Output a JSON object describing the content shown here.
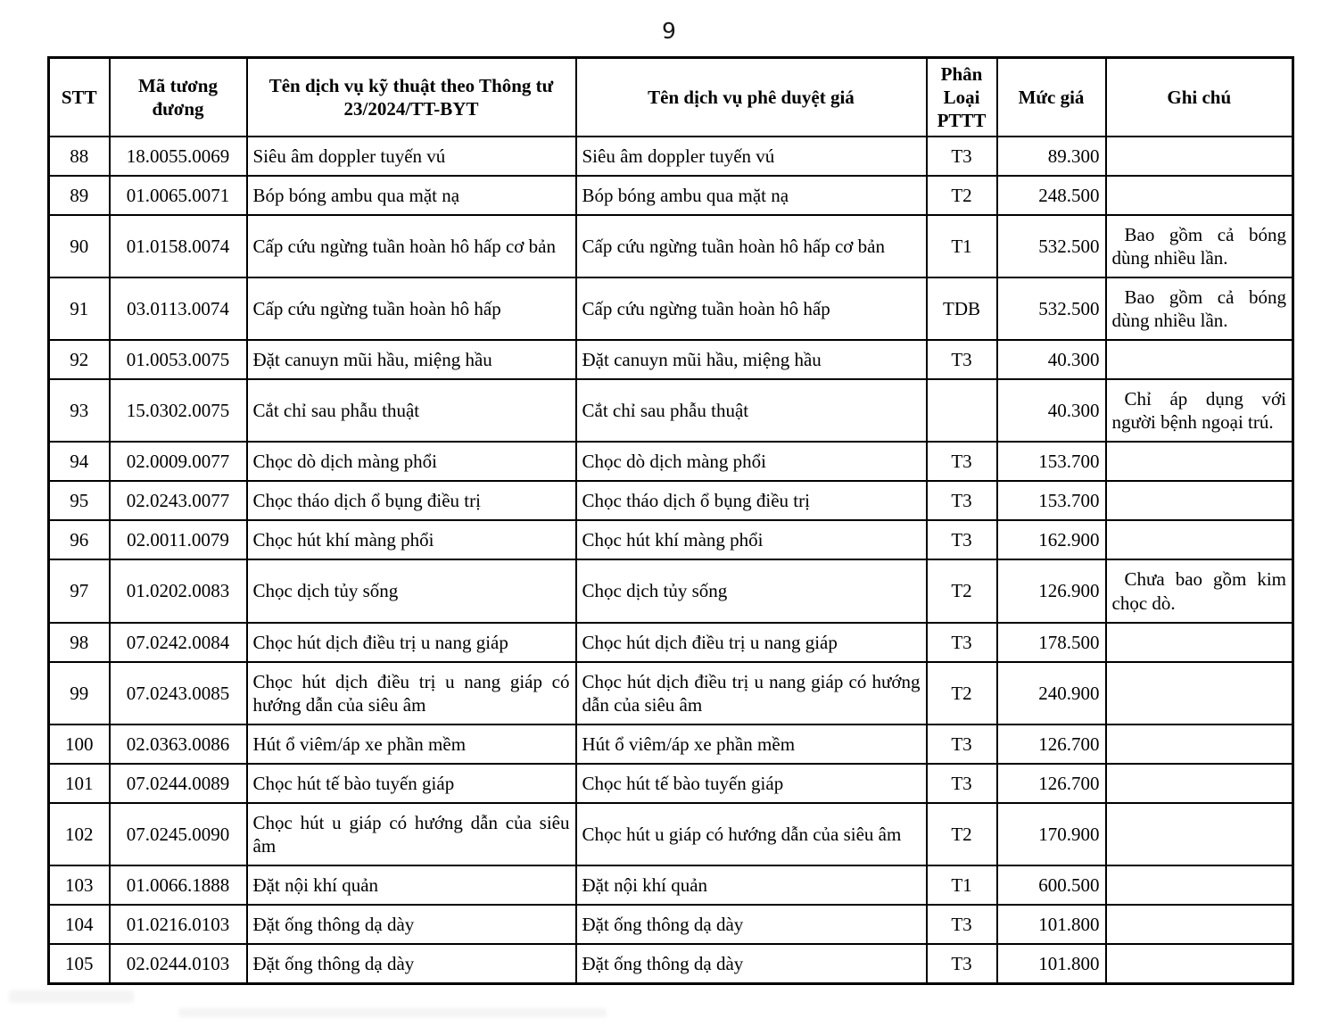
{
  "page": {
    "number": "9"
  },
  "table": {
    "headers": {
      "stt": "STT",
      "code": "Mã tương đương",
      "service_tt": "Tên dịch vụ kỹ thuật theo Thông tư 23/2024/TT-BYT",
      "service_approved": "Tên dịch vụ phê duyệt giá",
      "pttt": "Phân Loại PTTT",
      "price": "Mức giá",
      "note": "Ghi chú"
    },
    "rows": [
      {
        "stt": "88",
        "code": "18.0055.0069",
        "service_tt": "Siêu âm doppler tuyến vú",
        "service_approved": "Siêu âm doppler tuyến vú",
        "pttt": "T3",
        "price": "89.300",
        "note": ""
      },
      {
        "stt": "89",
        "code": "01.0065.0071",
        "service_tt": "Bóp bóng ambu qua mặt nạ",
        "service_approved": "Bóp bóng ambu qua mặt nạ",
        "pttt": "T2",
        "price": "248.500",
        "note": ""
      },
      {
        "stt": "90",
        "code": "01.0158.0074",
        "service_tt": "Cấp cứu ngừng tuần hoàn hô hấp cơ bản",
        "service_approved": "Cấp cứu ngừng tuần hoàn hô hấp cơ bản",
        "pttt": "T1",
        "price": "532.500",
        "note": "Bao gồm cả bóng dùng nhiều lần."
      },
      {
        "stt": "91",
        "code": "03.0113.0074",
        "service_tt": "Cấp cứu ngừng tuần hoàn hô hấp",
        "service_approved": "Cấp cứu ngừng tuần hoàn hô hấp",
        "pttt": "TDB",
        "price": "532.500",
        "note": "Bao gồm cả bóng dùng nhiều lần."
      },
      {
        "stt": "92",
        "code": "01.0053.0075",
        "service_tt": "Đặt canuyn mũi hầu, miệng hầu",
        "service_approved": "Đặt canuyn mũi hầu, miệng hầu",
        "pttt": "T3",
        "price": "40.300",
        "note": ""
      },
      {
        "stt": "93",
        "code": "15.0302.0075",
        "service_tt": "Cắt chỉ sau phẫu thuật",
        "service_approved": "Cắt chỉ sau phẫu thuật",
        "pttt": "",
        "price": "40.300",
        "note": "Chỉ áp dụng với người bệnh ngoại trú."
      },
      {
        "stt": "94",
        "code": "02.0009.0077",
        "service_tt": "Chọc dò dịch màng phổi",
        "service_approved": "Chọc dò dịch màng phổi",
        "pttt": "T3",
        "price": "153.700",
        "note": ""
      },
      {
        "stt": "95",
        "code": "02.0243.0077",
        "service_tt": "Chọc tháo dịch ổ bụng điều trị",
        "service_approved": "Chọc tháo dịch ổ bụng điều trị",
        "pttt": "T3",
        "price": "153.700",
        "note": ""
      },
      {
        "stt": "96",
        "code": "02.0011.0079",
        "service_tt": "Chọc hút khí màng phổi",
        "service_approved": "Chọc hút khí màng phổi",
        "pttt": "T3",
        "price": "162.900",
        "note": ""
      },
      {
        "stt": "97",
        "code": "01.0202.0083",
        "service_tt": "Chọc dịch tủy sống",
        "service_approved": "Chọc dịch tủy sống",
        "pttt": "T2",
        "price": "126.900",
        "note": "Chưa bao gồm kim chọc dò."
      },
      {
        "stt": "98",
        "code": "07.0242.0084",
        "service_tt": "Chọc hút dịch điều trị u nang giáp",
        "service_approved": "Chọc hút dịch điều trị u nang giáp",
        "pttt": "T3",
        "price": "178.500",
        "note": ""
      },
      {
        "stt": "99",
        "code": "07.0243.0085",
        "service_tt": "Chọc hút dịch điều trị u nang giáp có hướng dẫn của siêu âm",
        "service_approved": "Chọc hút dịch điều trị u nang giáp có hướng dẫn của siêu âm",
        "pttt": "T2",
        "price": "240.900",
        "note": ""
      },
      {
        "stt": "100",
        "code": "02.0363.0086",
        "service_tt": "Hút ổ viêm/áp xe phần mềm",
        "service_approved": "Hút ổ viêm/áp xe phần mềm",
        "pttt": "T3",
        "price": "126.700",
        "note": ""
      },
      {
        "stt": "101",
        "code": "07.0244.0089",
        "service_tt": "Chọc hút tế bào tuyến giáp",
        "service_approved": "Chọc hút tế bào tuyến giáp",
        "pttt": "T3",
        "price": "126.700",
        "note": ""
      },
      {
        "stt": "102",
        "code": "07.0245.0090",
        "service_tt": "Chọc hút u giáp có hướng dẫn của siêu âm",
        "service_approved": "Chọc hút u giáp có hướng dẫn của siêu âm",
        "pttt": "T2",
        "price": "170.900",
        "note": ""
      },
      {
        "stt": "103",
        "code": "01.0066.1888",
        "service_tt": "Đặt nội khí quản",
        "service_approved": "Đặt nội khí quản",
        "pttt": "T1",
        "price": "600.500",
        "note": ""
      },
      {
        "stt": "104",
        "code": "01.0216.0103",
        "service_tt": "Đặt ống thông dạ dày",
        "service_approved": "Đặt ống thông dạ dày",
        "pttt": "T3",
        "price": "101.800",
        "note": ""
      },
      {
        "stt": "105",
        "code": "02.0244.0103",
        "service_tt": "Đặt ống thông dạ dày",
        "service_approved": "Đặt ống thông dạ dày",
        "pttt": "T3",
        "price": "101.800",
        "note": ""
      }
    ]
  }
}
